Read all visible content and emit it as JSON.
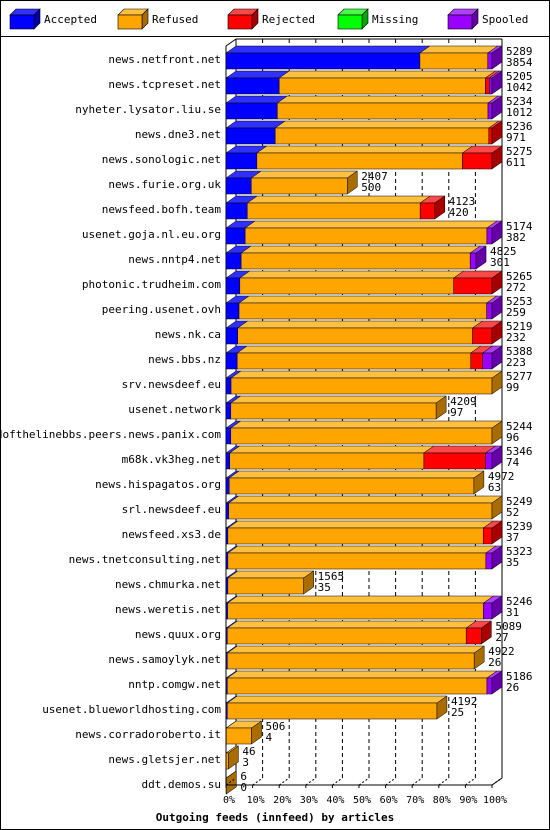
{
  "chart_data": {
    "type": "bar",
    "stacked": true,
    "orientation": "horizontal",
    "style": "3d",
    "title": "Outgoing feeds (innfeed) by articles",
    "xlim": [
      0,
      100
    ],
    "x_ticks": [
      "0%",
      "10%",
      "20%",
      "30%",
      "40%",
      "50%",
      "60%",
      "70%",
      "80%",
      "90%",
      "100%"
    ],
    "legend_position": "top",
    "series": [
      {
        "name": "Accepted",
        "color": "#0000ff",
        "side": "#0000a8",
        "top": "#3030ff"
      },
      {
        "name": "Refused",
        "color": "#ffa500",
        "side": "#a86c00",
        "top": "#ffc040"
      },
      {
        "name": "Rejected",
        "color": "#ff0000",
        "side": "#a80000",
        "top": "#ff4848"
      },
      {
        "name": "Missing",
        "color": "#00ff00",
        "side": "#00a800",
        "top": "#48ff48"
      },
      {
        "name": "Spooled",
        "color": "#9900ff",
        "side": "#6600a8",
        "top": "#b040ff"
      }
    ],
    "categories": [
      {
        "label": "news.netfront.net",
        "total": "5289",
        "accepted": "3854",
        "segments": [
          72.9,
          25.5,
          0,
          0,
          1.6
        ]
      },
      {
        "label": "news.tcpreset.net",
        "total": "5205",
        "accepted": "1042",
        "segments": [
          20.0,
          77.5,
          1.5,
          0,
          1.0
        ]
      },
      {
        "label": "nyheter.lysator.liu.se",
        "total": "5234",
        "accepted": "1012",
        "segments": [
          19.3,
          79.2,
          0,
          0,
          1.5
        ]
      },
      {
        "label": "news.dne3.net",
        "total": "5236",
        "accepted": "971",
        "segments": [
          18.5,
          80.3,
          1.2,
          0,
          0
        ]
      },
      {
        "label": "news.sonologic.net",
        "total": "5275",
        "accepted": "611",
        "segments": [
          11.6,
          77.3,
          11.1,
          0,
          0
        ]
      },
      {
        "label": "news.furie.org.uk",
        "total": "2407",
        "accepted": "500",
        "segments": [
          9.5,
          36.1,
          0,
          0,
          0
        ]
      },
      {
        "label": "newsfeed.bofh.team",
        "total": "4123",
        "accepted": "420",
        "segments": [
          8.0,
          65.0,
          5.5,
          0,
          0
        ]
      },
      {
        "label": "usenet.goja.nl.eu.org",
        "total": "5174",
        "accepted": "382",
        "segments": [
          7.2,
          90.9,
          0,
          0,
          1.9
        ]
      },
      {
        "label": "news.nntp4.net",
        "total": "4825",
        "accepted": "301",
        "segments": [
          5.7,
          86.1,
          0,
          0,
          2.2
        ]
      },
      {
        "label": "photonic.trudheim.com",
        "total": "5265",
        "accepted": "272",
        "segments": [
          5.2,
          80.4,
          14.4,
          0,
          0
        ]
      },
      {
        "label": "peering.usenet.ovh",
        "total": "5253",
        "accepted": "259",
        "segments": [
          4.9,
          93.1,
          0,
          0,
          2.0
        ]
      },
      {
        "label": "news.nk.ca",
        "total": "5219",
        "accepted": "232",
        "segments": [
          4.4,
          88.3,
          7.3,
          0,
          0
        ]
      },
      {
        "label": "news.bbs.nz",
        "total": "5388",
        "accepted": "223",
        "segments": [
          4.2,
          87.8,
          4.5,
          0,
          3.5
        ]
      },
      {
        "label": "srv.newsdeef.eu",
        "total": "5277",
        "accepted": "99",
        "segments": [
          1.9,
          98.1,
          0,
          0,
          0
        ]
      },
      {
        "label": "usenet.network",
        "total": "4209",
        "accepted": "97",
        "segments": [
          1.8,
          77.2,
          0,
          0,
          0
        ]
      },
      {
        "label": "endofthelinebbs.peers.news.panix.com",
        "total": "5244",
        "accepted": "96",
        "segments": [
          1.8,
          98.2,
          0,
          0,
          0
        ]
      },
      {
        "label": "m68k.vk3heg.net",
        "total": "5346",
        "accepted": "74",
        "segments": [
          1.4,
          73.0,
          23.2,
          0,
          2.4
        ]
      },
      {
        "label": "news.hispagatos.org",
        "total": "4972",
        "accepted": "63",
        "segments": [
          1.2,
          92.0,
          0,
          0,
          0
        ]
      },
      {
        "label": "srl.newsdeef.eu",
        "total": "5249",
        "accepted": "52",
        "segments": [
          1.0,
          99.0,
          0,
          0,
          0
        ]
      },
      {
        "label": "newsfeed.xs3.de",
        "total": "5239",
        "accepted": "37",
        "segments": [
          0.7,
          96.0,
          3.3,
          0,
          0
        ]
      },
      {
        "label": "news.tnetconsulting.net",
        "total": "5323",
        "accepted": "35",
        "segments": [
          0.7,
          97.0,
          0,
          0,
          2.3
        ]
      },
      {
        "label": "news.chmurka.net",
        "total": "1565",
        "accepted": "35",
        "segments": [
          0.7,
          28.5,
          0,
          0,
          0
        ]
      },
      {
        "label": "news.weretis.net",
        "total": "5246",
        "accepted": "31",
        "segments": [
          0.6,
          96.2,
          0,
          0,
          3.2
        ]
      },
      {
        "label": "news.quux.org",
        "total": "5089",
        "accepted": "27",
        "segments": [
          0.5,
          89.8,
          5.7,
          0,
          0
        ]
      },
      {
        "label": "news.samoylyk.net",
        "total": "4922",
        "accepted": "26",
        "segments": [
          0.5,
          92.8,
          0,
          0,
          0
        ]
      },
      {
        "label": "nntp.comgw.net",
        "total": "5186",
        "accepted": "26",
        "segments": [
          0.5,
          97.6,
          0,
          0,
          1.9
        ]
      },
      {
        "label": "usenet.blueworldhosting.com",
        "total": "4192",
        "accepted": "25",
        "segments": [
          0.5,
          78.8,
          0,
          0,
          0
        ]
      },
      {
        "label": "news.corradoroberto.it",
        "total": "506",
        "accepted": "4",
        "segments": [
          0.1,
          9.5,
          0,
          0,
          0
        ]
      },
      {
        "label": "news.gletsjer.net",
        "total": "46",
        "accepted": "3",
        "segments": [
          0.05,
          0.85,
          0,
          0,
          0
        ]
      },
      {
        "label": "ddt.demos.su",
        "total": "6",
        "accepted": "0",
        "segments": [
          0,
          0.12,
          0,
          0,
          0
        ]
      }
    ]
  }
}
